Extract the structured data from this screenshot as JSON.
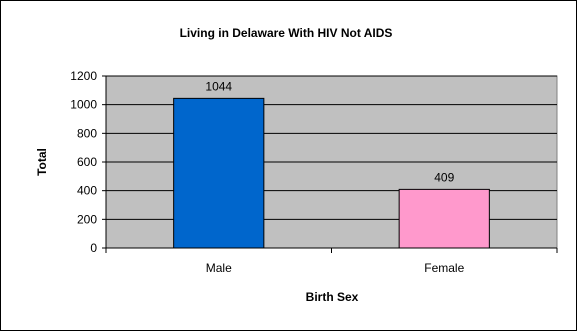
{
  "chart_data": {
    "type": "bar",
    "title": "Living in Delaware With HIV Not AIDS",
    "xlabel": "Birth Sex",
    "ylabel": "Total",
    "categories": [
      "Male",
      "Female"
    ],
    "values": [
      1044,
      409
    ],
    "data_labels": [
      "1044",
      "409"
    ],
    "bar_colors": [
      "#0066CC",
      "#FF99CC"
    ],
    "ylim": [
      0,
      1200
    ],
    "ytick_step": 200,
    "yticks": [
      "0",
      "200",
      "400",
      "600",
      "800",
      "1000",
      "1200"
    ],
    "plot_background": "#C0C0C0",
    "grid": true,
    "legend": "none"
  }
}
